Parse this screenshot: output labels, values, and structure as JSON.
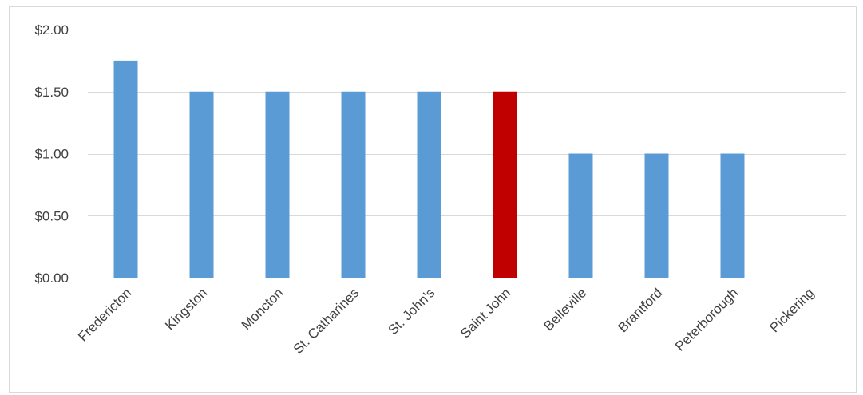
{
  "chart_data": {
    "type": "bar",
    "title": "",
    "xlabel": "",
    "ylabel": "",
    "categories": [
      "Fredericton",
      "Kingston",
      "Moncton",
      "St. Catharines",
      "St. John's",
      "Saint John",
      "Belleville",
      "Brantford",
      "Peterborough",
      "Pickering"
    ],
    "values": [
      1.75,
      1.5,
      1.5,
      1.5,
      1.5,
      1.5,
      1.0,
      1.0,
      1.0,
      0
    ],
    "ylim": [
      0,
      2
    ],
    "yticks": [
      0,
      0.5,
      1.0,
      1.5,
      2.0
    ],
    "ytick_labels": [
      "$0.00",
      "$0.50",
      "$1.00",
      "$1.50",
      "$2.00"
    ],
    "grid": true,
    "legend": "none",
    "colors": {
      "default_bar": "#5b9bd5",
      "highlight_bar": "#c00000",
      "gridline": "#d9d9d9",
      "axis_text": "#404040"
    },
    "highlight_category": "Saint John"
  }
}
